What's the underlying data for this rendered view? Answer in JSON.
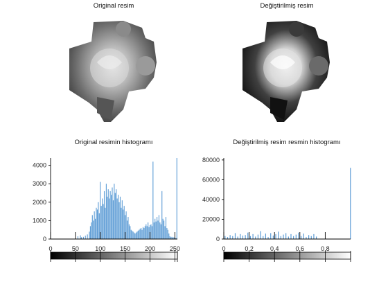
{
  "chart_data": [
    {
      "type": "image",
      "title": "Original resim",
      "colormap": "gray",
      "axes": "off"
    },
    {
      "type": "image",
      "title": "Değiştirilmiş resim",
      "colormap": "gray",
      "axes": "off"
    },
    {
      "type": "bar",
      "title": "Original resimin histogramı",
      "bar_color": "#5b9bd5",
      "xlim": [
        0,
        255
      ],
      "ylim": [
        0,
        4400
      ],
      "xticks": [
        "0",
        "50",
        "100",
        "150",
        "200",
        "250"
      ],
      "yticks": [
        "0",
        "1000",
        "2000",
        "3000",
        "4000"
      ],
      "colorbar": "gray",
      "x": [
        55,
        60,
        62,
        66,
        70,
        74,
        78,
        80,
        82,
        84,
        86,
        88,
        90,
        92,
        94,
        96,
        98,
        100,
        102,
        104,
        106,
        108,
        110,
        112,
        114,
        116,
        118,
        120,
        122,
        124,
        126,
        128,
        130,
        132,
        134,
        136,
        138,
        140,
        142,
        144,
        146,
        148,
        150,
        152,
        154,
        156,
        158,
        160,
        162,
        164,
        166,
        168,
        170,
        172,
        174,
        176,
        178,
        180,
        182,
        184,
        186,
        188,
        190,
        192,
        194,
        196,
        198,
        200,
        202,
        204,
        206,
        208,
        210,
        212,
        214,
        216,
        218,
        220,
        222,
        224,
        226,
        228,
        230,
        232,
        234,
        236,
        238,
        240,
        242,
        244,
        246,
        248,
        250,
        252,
        254
      ],
      "values": [
        150,
        200,
        100,
        120,
        180,
        250,
        400,
        700,
        900,
        1300,
        1000,
        1500,
        1100,
        1700,
        1600,
        2000,
        1400,
        3100,
        1800,
        2200,
        1900,
        2600,
        1700,
        3000,
        2300,
        2700,
        2200,
        2600,
        2400,
        2800,
        2100,
        3000,
        2500,
        2700,
        2200,
        2400,
        2000,
        2300,
        1700,
        2100,
        1600,
        1800,
        1300,
        1500,
        1000,
        1200,
        800,
        700,
        500,
        450,
        400,
        350,
        300,
        350,
        400,
        450,
        500,
        550,
        600,
        500,
        650,
        600,
        700,
        800,
        700,
        900,
        650,
        750,
        800,
        700,
        4200,
        900,
        1100,
        950,
        1200,
        1000,
        1300,
        900,
        800,
        2600,
        1100,
        1000,
        700,
        1200,
        600,
        500,
        300,
        150,
        100,
        120,
        80,
        100,
        60,
        50,
        4400
      ]
    },
    {
      "type": "bar",
      "title": "Değiştirilmiş resim resmin histogramı",
      "bar_color": "#5b9bd5",
      "xlim": [
        0,
        1
      ],
      "ylim": [
        0,
        82000
      ],
      "xticks": [
        "0",
        "0.2",
        "0.4",
        "0.6",
        "0.8"
      ],
      "yticks": [
        "0",
        "20000",
        "40000",
        "60000",
        "80000"
      ],
      "colorbar": "gray",
      "x": [
        0.01,
        0.03,
        0.05,
        0.07,
        0.09,
        0.11,
        0.13,
        0.15,
        0.17,
        0.19,
        0.21,
        0.23,
        0.25,
        0.27,
        0.29,
        0.31,
        0.33,
        0.35,
        0.37,
        0.39,
        0.41,
        0.43,
        0.45,
        0.47,
        0.49,
        0.51,
        0.53,
        0.55,
        0.57,
        0.59,
        0.61,
        0.63,
        0.65,
        0.67,
        0.69,
        0.71,
        0.73,
        0.999
      ],
      "values": [
        3000,
        2000,
        4000,
        3000,
        6000,
        2500,
        5000,
        3500,
        4000,
        6500,
        3000,
        5000,
        2500,
        4500,
        8000,
        3000,
        5500,
        2000,
        6000,
        3500,
        5000,
        7500,
        3000,
        4500,
        6000,
        2500,
        5000,
        3000,
        4500,
        6500,
        3000,
        5500,
        2000,
        4000,
        3000,
        5000,
        2500,
        72000
      ]
    }
  ]
}
